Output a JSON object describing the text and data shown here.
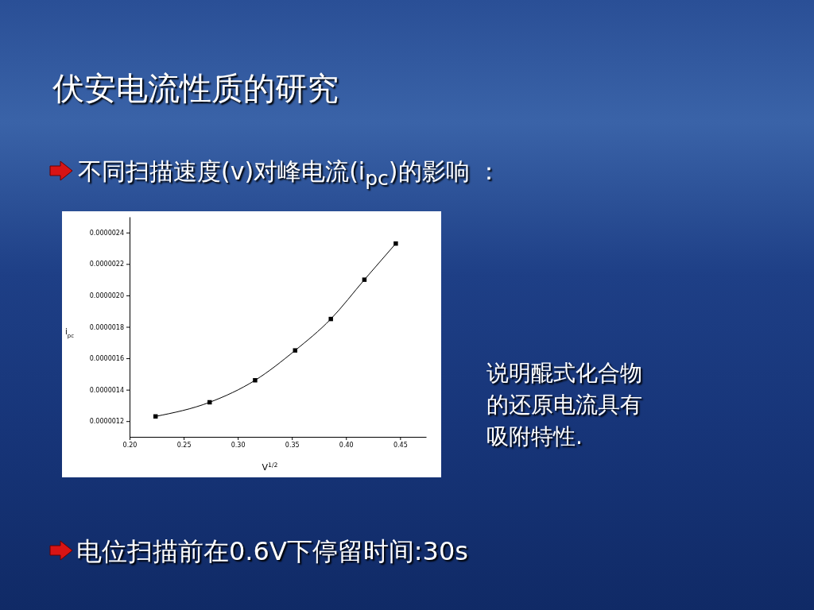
{
  "chart_data": {
    "type": "scatter",
    "title": "伏安电流性质的研究",
    "subtitle": "不同扫描速度(v)对峰电流(i$_{pc}$)的影响 ：",
    "xlabel": "V$^{1/2}$",
    "ylabel": "i$_{pc}$",
    "annotations": [
      "说明醌式化合物的还原电流具有吸附特性.",
      "电位扫描前在0.6V下停留时间:30s"
    ],
    "x": [
      0.224,
      0.274,
      0.316,
      0.353,
      0.386,
      0.417,
      0.446
    ],
    "series": [
      {
        "type": "scatter",
        "color": "#000000",
        "marker": "square",
        "values": [
          1.23e-06,
          1.32e-06,
          1.46e-06,
          1.65e-06,
          1.85e-06,
          2.1e-06,
          2.33e-06
        ]
      },
      {
        "type": "line",
        "color": "#000000",
        "x": [
          0.224,
          0.274,
          0.316,
          0.353,
          0.386,
          0.417,
          0.446
        ],
        "values": [
          1.23e-06,
          1.32e-06,
          1.46e-06,
          1.65e-06,
          1.85e-06,
          2.1e-06,
          2.33e-06
        ]
      }
    ],
    "xlim": [
      0.2,
      0.474
    ],
    "xticks": [
      {
        "value": 0.2,
        "label": "0.20"
      },
      {
        "value": 0.25,
        "label": "0.25"
      },
      {
        "value": 0.3,
        "label": "0.30"
      },
      {
        "value": 0.35,
        "label": "0.35"
      },
      {
        "value": 0.4,
        "label": "0.40"
      },
      {
        "value": 0.45,
        "label": "0.45"
      }
    ],
    "ylim": [
      1.1e-06,
      2.5e-06
    ],
    "yticks": [
      {
        "value": 1.2e-06,
        "label": "0.0000012"
      },
      {
        "value": 1.4e-06,
        "label": "0.0000014"
      },
      {
        "value": 1.6e-06,
        "label": "0.0000016"
      },
      {
        "value": 1.8e-06,
        "label": "0.0000018"
      },
      {
        "value": 2e-06,
        "label": "0.0000020"
      },
      {
        "value": 2.2e-06,
        "label": "0.0000022"
      },
      {
        "value": 2.4e-06,
        "label": "0.0000024"
      }
    ],
    "grid": false
  }
}
